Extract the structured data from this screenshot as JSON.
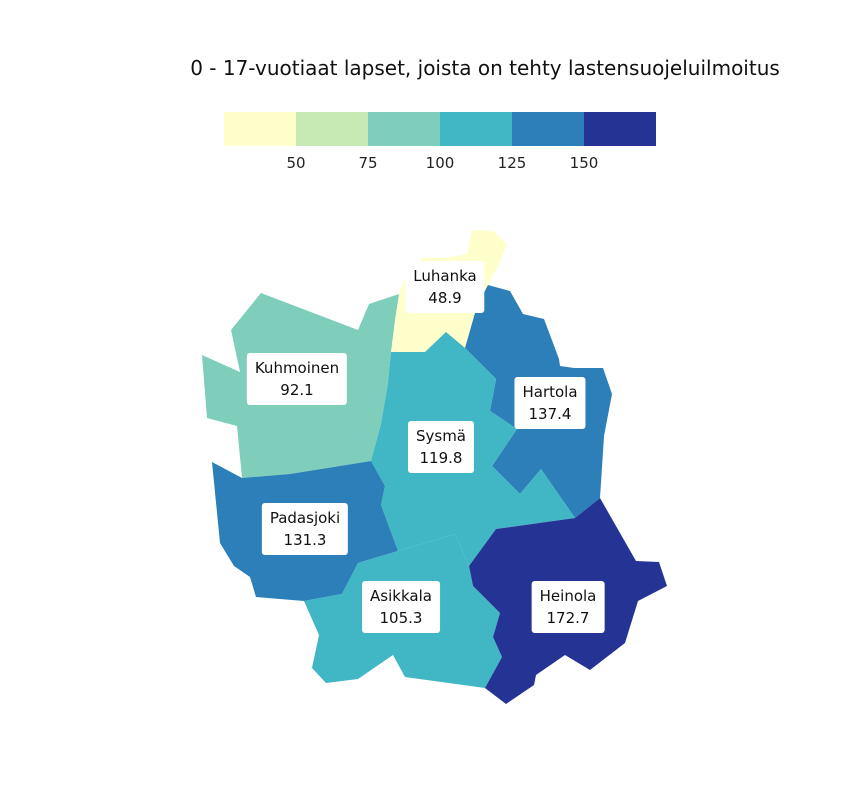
{
  "title": "0 - 17-vuotiaat lapset, joista on tehty lastensuojeluilmoitus",
  "legend": {
    "colors": [
      "#ffffcc",
      "#c7e9b4",
      "#7fcdbb",
      "#41b6c4",
      "#2c7fb8",
      "#253494"
    ],
    "ticks": [
      "50",
      "75",
      "100",
      "125",
      "150"
    ]
  },
  "regions": [
    {
      "id": "luhanka",
      "name": "Luhanka",
      "value": "48.9",
      "color": "#ffffcc"
    },
    {
      "id": "kuhmoinen",
      "name": "Kuhmoinen",
      "value": "92.1",
      "color": "#7fcdbb"
    },
    {
      "id": "hartola",
      "name": "Hartola",
      "value": "137.4",
      "color": "#2c7fb8"
    },
    {
      "id": "sysma",
      "name": "Sysmä",
      "value": "119.8",
      "color": "#41b6c4"
    },
    {
      "id": "padasjoki",
      "name": "Padasjoki",
      "value": "131.3",
      "color": "#2c7fb8"
    },
    {
      "id": "asikkala",
      "name": "Asikkala",
      "value": "105.3",
      "color": "#41b6c4"
    },
    {
      "id": "heinola",
      "name": "Heinola",
      "value": "172.7",
      "color": "#253494"
    }
  ]
}
